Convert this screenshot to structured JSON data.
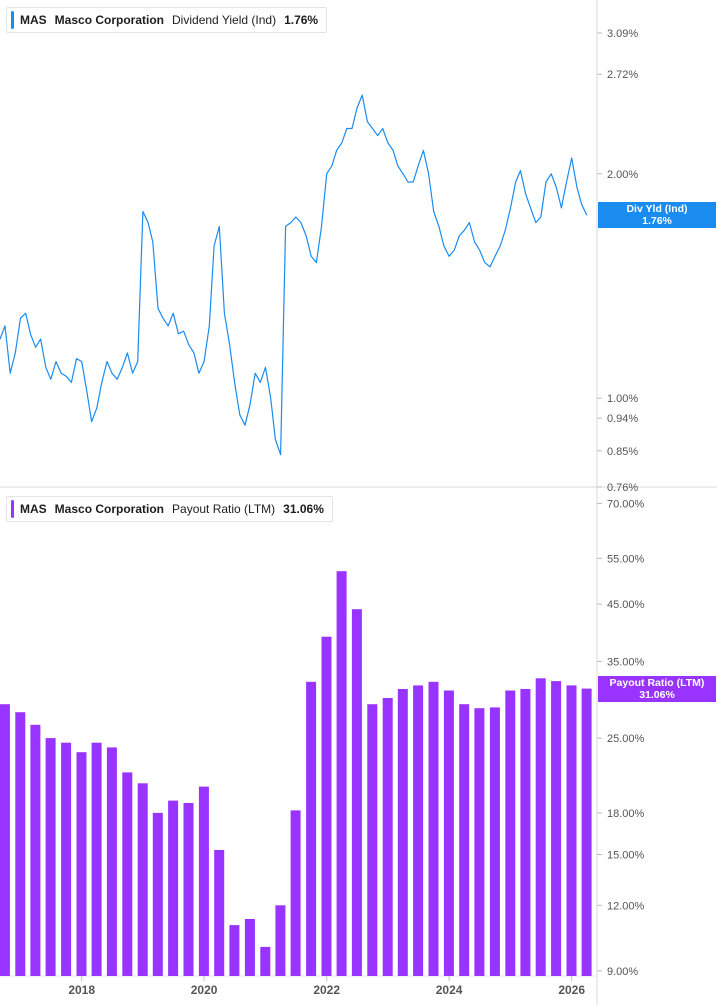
{
  "chart_data": [
    {
      "type": "line",
      "legend": {
        "ticker": "MAS",
        "company": "Masco Corporation",
        "metric": "Dividend Yield (Ind)",
        "value": "1.76%"
      },
      "scale": "log",
      "ylim": [
        0.76,
        3.4
      ],
      "xlim": [
        "2016-09-01",
        "2026-06-01"
      ],
      "y_ticks": [
        "3.09%",
        "2.72%",
        "2.00%",
        "1.00%",
        "0.94%",
        "0.85%",
        "0.76%"
      ],
      "y_tick_values": [
        3.09,
        2.72,
        2.0,
        1.0,
        0.94,
        0.85,
        0.76
      ],
      "current_tag": {
        "line1": "Div Yld (Ind)",
        "line2": "1.76%",
        "value": 1.76
      },
      "color": "#1a8cf0",
      "series": [
        {
          "x": [
            "2016-09-01",
            "2016-10-01",
            "2016-11-01",
            "2016-12-01",
            "2017-01-01",
            "2017-02-01",
            "2017-03-01",
            "2017-04-01",
            "2017-05-01",
            "2017-06-01",
            "2017-07-01",
            "2017-08-01",
            "2017-09-01",
            "2017-10-01",
            "2017-11-01",
            "2017-12-01",
            "2018-01-01",
            "2018-02-01",
            "2018-03-01",
            "2018-04-01",
            "2018-05-01",
            "2018-06-01",
            "2018-07-01",
            "2018-08-01",
            "2018-09-01",
            "2018-10-01",
            "2018-11-01",
            "2018-12-01",
            "2019-01-01",
            "2019-02-01",
            "2019-03-01",
            "2019-04-01",
            "2019-05-01",
            "2019-06-01",
            "2019-07-01",
            "2019-08-01",
            "2019-09-01",
            "2019-10-01",
            "2019-11-01",
            "2019-12-01",
            "2020-01-01",
            "2020-02-01",
            "2020-03-01",
            "2020-04-01",
            "2020-05-01",
            "2020-06-01",
            "2020-07-01",
            "2020-08-01",
            "2020-09-01",
            "2020-10-01",
            "2020-11-01",
            "2020-12-01",
            "2021-01-01",
            "2021-02-01",
            "2021-03-01",
            "2021-04-01",
            "2021-05-01",
            "2021-06-01",
            "2021-07-01",
            "2021-08-01",
            "2021-09-01",
            "2021-10-01",
            "2021-11-01",
            "2021-12-01",
            "2022-01-01",
            "2022-02-01",
            "2022-03-01",
            "2022-04-01",
            "2022-05-01",
            "2022-06-01",
            "2022-07-01",
            "2022-08-01",
            "2022-09-01",
            "2022-10-01",
            "2022-11-01",
            "2022-12-01",
            "2023-01-01",
            "2023-02-01",
            "2023-03-01",
            "2023-04-01",
            "2023-05-01",
            "2023-06-01",
            "2023-07-01",
            "2023-08-01",
            "2023-09-01",
            "2023-10-01",
            "2023-11-01",
            "2023-12-01",
            "2024-01-01",
            "2024-02-01",
            "2024-03-01",
            "2024-04-01",
            "2024-05-01",
            "2024-06-01",
            "2024-07-01",
            "2024-08-01",
            "2024-09-01",
            "2024-10-01",
            "2024-11-01",
            "2024-12-01",
            "2025-01-01",
            "2025-02-01",
            "2025-03-01",
            "2025-04-01",
            "2025-05-01",
            "2025-06-01",
            "2025-07-01",
            "2025-08-01",
            "2025-09-01",
            "2025-10-01",
            "2025-11-01",
            "2025-12-01",
            "2026-01-01",
            "2026-02-01",
            "2026-03-01",
            "2026-04-01"
          ],
          "y": [
            1.2,
            1.25,
            1.08,
            1.15,
            1.28,
            1.3,
            1.22,
            1.17,
            1.2,
            1.1,
            1.06,
            1.12,
            1.08,
            1.07,
            1.05,
            1.13,
            1.12,
            1.02,
            0.93,
            0.97,
            1.05,
            1.12,
            1.08,
            1.06,
            1.1,
            1.15,
            1.08,
            1.12,
            1.78,
            1.72,
            1.62,
            1.32,
            1.28,
            1.25,
            1.3,
            1.22,
            1.23,
            1.18,
            1.15,
            1.08,
            1.12,
            1.25,
            1.6,
            1.7,
            1.3,
            1.18,
            1.05,
            0.95,
            0.92,
            0.98,
            1.08,
            1.05,
            1.1,
            1.0,
            0.88,
            0.84,
            1.7,
            1.72,
            1.75,
            1.72,
            1.65,
            1.55,
            1.52,
            1.7,
            2.0,
            2.05,
            2.15,
            2.2,
            2.3,
            2.3,
            2.45,
            2.55,
            2.35,
            2.3,
            2.25,
            2.3,
            2.2,
            2.15,
            2.05,
            2.0,
            1.95,
            1.95,
            2.05,
            2.15,
            2.0,
            1.78,
            1.7,
            1.6,
            1.55,
            1.58,
            1.65,
            1.68,
            1.72,
            1.62,
            1.58,
            1.52,
            1.5,
            1.55,
            1.6,
            1.68,
            1.8,
            1.95,
            2.02,
            1.88,
            1.8,
            1.72,
            1.75,
            1.95,
            2.0,
            1.92,
            1.8,
            1.95,
            2.1,
            1.92,
            1.82,
            1.76
          ]
        }
      ]
    },
    {
      "type": "bar",
      "legend": {
        "ticker": "MAS",
        "company": "Masco Corporation",
        "metric": "Payout Ratio (LTM)",
        "value": "31.06%"
      },
      "scale": "log",
      "ylim": [
        8.8,
        72
      ],
      "y_ticks": [
        "70.00%",
        "55.00%",
        "45.00%",
        "35.00%",
        "25.00%",
        "18.00%",
        "15.00%",
        "12.00%",
        "9.00%"
      ],
      "y_tick_values": [
        70,
        55,
        45,
        35,
        25,
        18,
        15,
        12,
        9
      ],
      "x_ticks": [
        "2018",
        "2020",
        "2022",
        "2024",
        "2026"
      ],
      "x_tick_values": [
        "2018-01-01",
        "2020-01-01",
        "2022-01-01",
        "2024-01-01",
        "2026-01-01"
      ],
      "current_tag": {
        "line1": "Payout Ratio (LTM)",
        "line2": "31.06%",
        "value": 31.06
      },
      "color": "#9933ff",
      "x": [
        "2016-09-30",
        "2016-12-31",
        "2017-03-31",
        "2017-06-30",
        "2017-09-30",
        "2017-12-31",
        "2018-03-31",
        "2018-06-30",
        "2018-09-30",
        "2018-12-31",
        "2019-03-31",
        "2019-06-30",
        "2019-09-30",
        "2019-12-31",
        "2020-03-31",
        "2020-06-30",
        "2020-09-30",
        "2020-12-31",
        "2021-03-31",
        "2021-06-30",
        "2021-09-30",
        "2021-12-31",
        "2022-03-31",
        "2022-06-30",
        "2022-09-30",
        "2022-12-31",
        "2023-03-31",
        "2023-06-30",
        "2023-09-30",
        "2023-12-31",
        "2024-03-31",
        "2024-06-30",
        "2024-09-30",
        "2024-12-31",
        "2025-03-31",
        "2025-06-30",
        "2025-09-30",
        "2025-12-31",
        "2026-03-31"
      ],
      "values": [
        29.0,
        28.0,
        26.5,
        25.0,
        24.5,
        23.5,
        24.5,
        24.0,
        21.5,
        20.5,
        18.0,
        19.0,
        18.8,
        20.2,
        15.3,
        11.0,
        11.3,
        10.0,
        12.0,
        18.2,
        32.0,
        39.0,
        52.0,
        44.0,
        29.0,
        29.8,
        31.0,
        31.5,
        32.0,
        30.8,
        29.0,
        28.5,
        28.6,
        30.8,
        31.0,
        32.5,
        32.1,
        31.5,
        31.06
      ]
    }
  ]
}
